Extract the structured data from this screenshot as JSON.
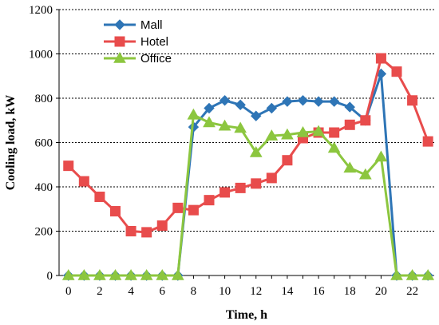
{
  "chart_data": {
    "type": "line",
    "xlabel": "Time, h",
    "ylabel": "Cooling load, kW",
    "xlim": [
      -0.6,
      23.4
    ],
    "ylim": [
      0,
      1200
    ],
    "xticks": [
      0,
      2,
      4,
      6,
      8,
      10,
      12,
      14,
      16,
      18,
      20,
      22
    ],
    "yticks": [
      0,
      200,
      400,
      600,
      800,
      1000,
      1200
    ],
    "grid": "horizontal dashed",
    "legend_position": "top-left",
    "x": [
      0,
      1,
      2,
      3,
      4,
      5,
      6,
      7,
      8,
      9,
      10,
      11,
      12,
      13,
      14,
      15,
      16,
      17,
      18,
      19,
      20,
      21,
      22,
      23
    ],
    "series": [
      {
        "name": "Mall",
        "color": "#2e75b6",
        "marker": "diamond",
        "values": [
          0,
          0,
          0,
          0,
          0,
          0,
          0,
          0,
          670,
          755,
          790,
          770,
          720,
          755,
          785,
          790,
          785,
          785,
          760,
          700,
          910,
          0,
          0,
          0
        ]
      },
      {
        "name": "Hotel",
        "color": "#e84c4c",
        "marker": "square",
        "values": [
          495,
          425,
          355,
          290,
          200,
          195,
          225,
          305,
          295,
          340,
          375,
          395,
          415,
          440,
          520,
          620,
          645,
          645,
          680,
          700,
          980,
          920,
          790,
          605
        ]
      },
      {
        "name": "Office",
        "color": "#8cc63f",
        "marker": "triangle",
        "values": [
          0,
          0,
          0,
          0,
          0,
          0,
          0,
          0,
          725,
          690,
          675,
          665,
          555,
          630,
          635,
          645,
          650,
          575,
          485,
          455,
          535,
          0,
          0,
          0
        ]
      }
    ]
  }
}
